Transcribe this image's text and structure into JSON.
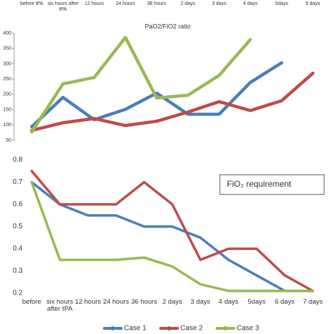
{
  "chart_data": [
    {
      "type": "line",
      "title": "PaO2/FiO2 ratio",
      "categories": [
        "before tPA",
        "six hours after tPA",
        "12 hours",
        "24 hours",
        "36 hours",
        "2 days",
        "3 days",
        "4 days",
        "5days",
        "6 days"
      ],
      "series": [
        {
          "color": "#4a7ebb",
          "values": [
            94,
            190,
            117,
            151,
            204,
            135,
            135,
            239,
            303,
            null
          ]
        },
        {
          "color": "#be4b48",
          "values": [
            82,
            107,
            121,
            98,
            112,
            142,
            176,
            147,
            179,
            269
          ]
        },
        {
          "color": "#98b954",
          "values": [
            77,
            234,
            255,
            386,
            188,
            197,
            262,
            379,
            null,
            null
          ]
        }
      ],
      "ylim": [
        50,
        400
      ],
      "yticks": [
        50,
        100,
        150,
        200,
        250,
        300,
        350,
        400
      ]
    },
    {
      "type": "line",
      "annotation": "FiO₂ requirement",
      "categories": [
        "before",
        "six hours after tPA",
        "12 hours",
        "24 hours",
        "36 hours",
        "2 days",
        "3 days",
        "4 days",
        "5days",
        "6 days",
        "7 days"
      ],
      "series": [
        {
          "name": "Case 1",
          "color": "#4a7ebb",
          "values": [
            0.7,
            0.6,
            0.55,
            0.55,
            0.5,
            0.5,
            0.45,
            0.35,
            0.28,
            0.21,
            0.21
          ]
        },
        {
          "name": "Case 2",
          "color": "#be4b48",
          "values": [
            0.75,
            0.6,
            0.6,
            0.6,
            0.7,
            0.6,
            0.35,
            0.4,
            0.4,
            0.28,
            0.21
          ]
        },
        {
          "name": "Case 3",
          "color": "#98b954",
          "values": [
            0.7,
            0.35,
            0.35,
            0.35,
            0.36,
            0.32,
            0.24,
            0.21,
            0.21,
            0.21,
            0.21
          ]
        }
      ],
      "ylim": [
        0.2,
        0.8
      ],
      "yticks": [
        0.2,
        0.3,
        0.4,
        0.5,
        0.6,
        0.7,
        0.8
      ]
    }
  ]
}
